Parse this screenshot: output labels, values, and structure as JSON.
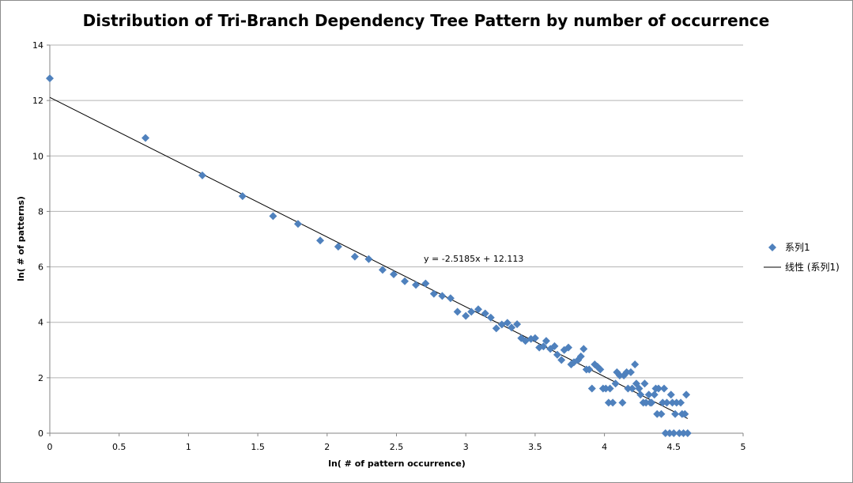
{
  "chart_data": {
    "type": "scatter",
    "title": "Distribution of Tri-Branch Dependency Tree Pattern by number of occurrence",
    "xlabel": "ln( # of pattern occurrence)",
    "ylabel": "ln( # of patterns)",
    "xlim": [
      0,
      5
    ],
    "ylim": [
      0,
      14
    ],
    "x_ticks": [
      "0",
      "0.5",
      "1",
      "1.5",
      "2",
      "2.5",
      "3",
      "3.5",
      "4",
      "4.5",
      "5"
    ],
    "y_ticks": [
      "0",
      "2",
      "4",
      "6",
      "8",
      "10",
      "12",
      "14"
    ],
    "grid": "horizontal",
    "legend_position": "right",
    "colors": {
      "marker": "#4f81bd",
      "trendline": "#000000",
      "grid": "#b3b3b3"
    },
    "series": [
      {
        "name": "系列1",
        "marker": "diamond",
        "points": [
          [
            0.0,
            12.8
          ],
          [
            0.69,
            10.65
          ],
          [
            1.1,
            9.3
          ],
          [
            1.39,
            8.55
          ],
          [
            1.61,
            7.83
          ],
          [
            1.79,
            7.55
          ],
          [
            1.95,
            6.95
          ],
          [
            2.08,
            6.73
          ],
          [
            2.2,
            6.37
          ],
          [
            2.3,
            6.28
          ],
          [
            2.4,
            5.89
          ],
          [
            2.48,
            5.73
          ],
          [
            2.56,
            5.48
          ],
          [
            2.64,
            5.35
          ],
          [
            2.71,
            5.4
          ],
          [
            2.77,
            5.03
          ],
          [
            2.83,
            4.95
          ],
          [
            2.89,
            4.87
          ],
          [
            2.94,
            4.38
          ],
          [
            3.0,
            4.23
          ],
          [
            3.04,
            4.38
          ],
          [
            3.09,
            4.47
          ],
          [
            3.14,
            4.32
          ],
          [
            3.18,
            4.17
          ],
          [
            3.22,
            3.78
          ],
          [
            3.26,
            3.92
          ],
          [
            3.3,
            3.98
          ],
          [
            3.33,
            3.81
          ],
          [
            3.37,
            3.93
          ],
          [
            3.4,
            3.43
          ],
          [
            3.43,
            3.33
          ],
          [
            3.47,
            3.4
          ],
          [
            3.5,
            3.43
          ],
          [
            3.53,
            3.09
          ],
          [
            3.56,
            3.13
          ],
          [
            3.58,
            3.33
          ],
          [
            3.61,
            3.04
          ],
          [
            3.64,
            3.14
          ],
          [
            3.66,
            2.83
          ],
          [
            3.69,
            2.64
          ],
          [
            3.71,
            3.0
          ],
          [
            3.74,
            3.09
          ],
          [
            3.76,
            2.48
          ],
          [
            3.78,
            2.56
          ],
          [
            3.81,
            2.64
          ],
          [
            3.83,
            2.77
          ],
          [
            3.85,
            3.04
          ],
          [
            3.87,
            2.3
          ],
          [
            3.89,
            2.3
          ],
          [
            3.91,
            1.61
          ],
          [
            3.93,
            2.48
          ],
          [
            3.95,
            2.4
          ],
          [
            3.97,
            2.3
          ],
          [
            3.99,
            1.61
          ],
          [
            4.01,
            1.61
          ],
          [
            4.03,
            1.1
          ],
          [
            4.04,
            1.61
          ],
          [
            4.06,
            1.1
          ],
          [
            4.08,
            1.79
          ],
          [
            4.09,
            2.2
          ],
          [
            4.11,
            2.08
          ],
          [
            4.13,
            1.1
          ],
          [
            4.14,
            2.08
          ],
          [
            4.16,
            2.2
          ],
          [
            4.17,
            1.61
          ],
          [
            4.19,
            2.2
          ],
          [
            4.2,
            1.61
          ],
          [
            4.22,
            2.48
          ],
          [
            4.23,
            1.79
          ],
          [
            4.25,
            1.61
          ],
          [
            4.26,
            1.39
          ],
          [
            4.28,
            1.1
          ],
          [
            4.29,
            1.79
          ],
          [
            4.3,
            1.1
          ],
          [
            4.32,
            1.39
          ],
          [
            4.33,
            1.1
          ],
          [
            4.34,
            1.1
          ],
          [
            4.36,
            1.39
          ],
          [
            4.37,
            1.61
          ],
          [
            4.38,
            0.69
          ],
          [
            4.39,
            1.61
          ],
          [
            4.41,
            0.69
          ],
          [
            4.42,
            1.1
          ],
          [
            4.43,
            1.61
          ],
          [
            4.44,
            0.0
          ],
          [
            4.45,
            1.1
          ],
          [
            4.47,
            0.0
          ],
          [
            4.48,
            1.39
          ],
          [
            4.49,
            1.1
          ],
          [
            4.5,
            0.0
          ],
          [
            4.51,
            0.69
          ],
          [
            4.52,
            1.1
          ],
          [
            4.54,
            0.0
          ],
          [
            4.55,
            1.1
          ],
          [
            4.56,
            0.69
          ],
          [
            4.57,
            0.0
          ],
          [
            4.58,
            0.69
          ],
          [
            4.59,
            1.39
          ],
          [
            4.6,
            0.0
          ]
        ]
      }
    ],
    "trendline": {
      "name": "线性 (系列1)",
      "slope": -2.5185,
      "intercept": 12.113,
      "x_range": [
        0,
        4.6
      ],
      "equation_label": "y = -2.5185x + 12.113"
    }
  }
}
